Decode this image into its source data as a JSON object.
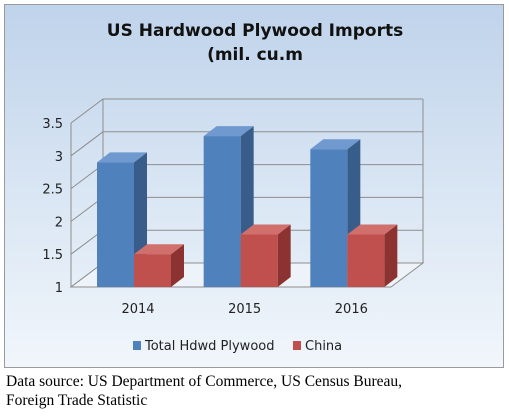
{
  "chart_data": {
    "type": "bar",
    "title_lines": [
      "US Hardwood Plywood Imports",
      "(mil. cu.m"
    ],
    "categories": [
      "2014",
      "2015",
      "2016"
    ],
    "series": [
      {
        "name": "Total Hdwd Plywood",
        "values": [
          2.9,
          3.3,
          3.1
        ],
        "color": "#4f81bd",
        "side_color": "#385d8a",
        "top_color": "#6f99cf"
      },
      {
        "name": "China",
        "values": [
          1.5,
          1.8,
          1.8
        ],
        "color": "#c0504d",
        "side_color": "#8c3230",
        "top_color": "#d06f6c"
      }
    ],
    "ylim": [
      1,
      3.5
    ],
    "yticks": [
      "1",
      "1.5",
      "2",
      "2.5",
      "3",
      "3.5"
    ],
    "ytick_values": [
      1,
      1.5,
      2,
      2.5,
      3,
      3.5
    ],
    "grid": true,
    "legend_position": "bottom",
    "style": "3d-clustered-column"
  },
  "source_note": [
    "Data source: US Department of Commerce, US Census Bureau,",
    "Foreign Trade Statistic"
  ]
}
